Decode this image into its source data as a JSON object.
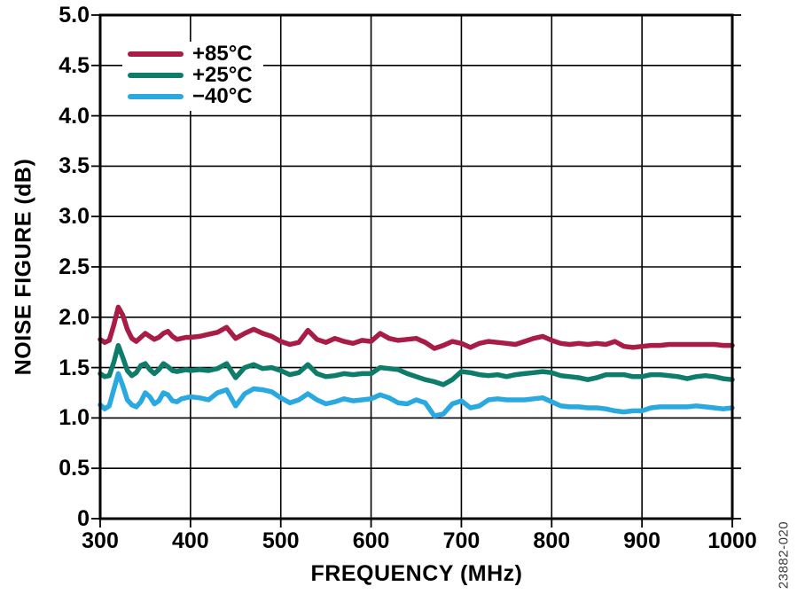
{
  "figure": {
    "watermark": "23882-020"
  },
  "chart_data": {
    "type": "line",
    "title": "",
    "xlabel": "FREQUENCY (MHz)",
    "ylabel": "NOISE FIGURE (dB)",
    "xlim": [
      300,
      1000
    ],
    "ylim": [
      0,
      5
    ],
    "grid": true,
    "legend_position": "top-left-inside",
    "x_ticks": [
      300,
      400,
      500,
      600,
      700,
      800,
      900,
      1000
    ],
    "x_tick_labels": [
      "300",
      "400",
      "500",
      "600",
      "700",
      "800",
      "900",
      "1000"
    ],
    "y_ticks": [
      0,
      0.5,
      1.0,
      1.5,
      2.0,
      2.5,
      3.0,
      3.5,
      4.0,
      4.5,
      5.0
    ],
    "y_tick_labels": [
      "0",
      "0.5",
      "1.0",
      "1.5",
      "2.0",
      "2.5",
      "3.0",
      "3.5",
      "4.0",
      "4.5",
      "5.0"
    ],
    "x": [
      300,
      305,
      310,
      315,
      320,
      325,
      330,
      335,
      340,
      345,
      350,
      355,
      360,
      365,
      370,
      375,
      380,
      385,
      390,
      395,
      400,
      410,
      420,
      430,
      440,
      450,
      460,
      470,
      480,
      490,
      500,
      510,
      520,
      530,
      540,
      550,
      560,
      570,
      580,
      590,
      600,
      610,
      620,
      630,
      640,
      650,
      660,
      670,
      680,
      690,
      700,
      710,
      720,
      730,
      740,
      750,
      760,
      770,
      780,
      790,
      800,
      810,
      820,
      830,
      840,
      850,
      860,
      870,
      880,
      890,
      900,
      910,
      920,
      930,
      940,
      950,
      960,
      970,
      980,
      990,
      1000
    ],
    "series": [
      {
        "name": "+85°C",
        "color": "#A81C45",
        "values": [
          1.78,
          1.75,
          1.77,
          1.92,
          2.1,
          2.02,
          1.88,
          1.79,
          1.76,
          1.8,
          1.84,
          1.81,
          1.78,
          1.8,
          1.84,
          1.86,
          1.81,
          1.78,
          1.79,
          1.8,
          1.8,
          1.81,
          1.83,
          1.85,
          1.9,
          1.79,
          1.84,
          1.88,
          1.84,
          1.81,
          1.76,
          1.73,
          1.75,
          1.87,
          1.78,
          1.75,
          1.79,
          1.76,
          1.74,
          1.77,
          1.76,
          1.84,
          1.79,
          1.77,
          1.78,
          1.79,
          1.75,
          1.69,
          1.72,
          1.76,
          1.74,
          1.7,
          1.74,
          1.76,
          1.75,
          1.74,
          1.73,
          1.76,
          1.79,
          1.81,
          1.77,
          1.74,
          1.73,
          1.74,
          1.73,
          1.74,
          1.73,
          1.76,
          1.71,
          1.7,
          1.71,
          1.72,
          1.72,
          1.73,
          1.73,
          1.73,
          1.73,
          1.73,
          1.73,
          1.72,
          1.72
        ]
      },
      {
        "name": "+25°C",
        "color": "#0E7C6B",
        "values": [
          1.44,
          1.41,
          1.42,
          1.55,
          1.72,
          1.6,
          1.47,
          1.42,
          1.45,
          1.52,
          1.54,
          1.48,
          1.44,
          1.48,
          1.54,
          1.51,
          1.47,
          1.46,
          1.47,
          1.48,
          1.47,
          1.48,
          1.47,
          1.49,
          1.54,
          1.4,
          1.5,
          1.53,
          1.49,
          1.5,
          1.47,
          1.43,
          1.45,
          1.53,
          1.44,
          1.41,
          1.42,
          1.44,
          1.43,
          1.44,
          1.44,
          1.5,
          1.49,
          1.48,
          1.44,
          1.41,
          1.38,
          1.36,
          1.33,
          1.38,
          1.46,
          1.45,
          1.43,
          1.42,
          1.43,
          1.41,
          1.43,
          1.44,
          1.45,
          1.46,
          1.45,
          1.42,
          1.41,
          1.4,
          1.38,
          1.4,
          1.43,
          1.43,
          1.43,
          1.41,
          1.41,
          1.43,
          1.43,
          1.42,
          1.41,
          1.39,
          1.41,
          1.42,
          1.41,
          1.39,
          1.38
        ]
      },
      {
        "name": "−40°C",
        "color": "#2AA9E0",
        "values": [
          1.13,
          1.09,
          1.12,
          1.28,
          1.44,
          1.32,
          1.18,
          1.13,
          1.11,
          1.16,
          1.25,
          1.21,
          1.14,
          1.17,
          1.25,
          1.23,
          1.17,
          1.16,
          1.19,
          1.2,
          1.21,
          1.2,
          1.18,
          1.25,
          1.28,
          1.12,
          1.24,
          1.29,
          1.28,
          1.26,
          1.2,
          1.15,
          1.18,
          1.24,
          1.18,
          1.14,
          1.16,
          1.19,
          1.17,
          1.18,
          1.19,
          1.23,
          1.2,
          1.15,
          1.14,
          1.18,
          1.15,
          1.02,
          1.04,
          1.14,
          1.17,
          1.1,
          1.12,
          1.18,
          1.19,
          1.18,
          1.18,
          1.18,
          1.19,
          1.2,
          1.16,
          1.12,
          1.11,
          1.11,
          1.1,
          1.1,
          1.09,
          1.07,
          1.06,
          1.07,
          1.07,
          1.1,
          1.11,
          1.11,
          1.11,
          1.11,
          1.12,
          1.11,
          1.1,
          1.09,
          1.1
        ]
      }
    ],
    "colors": {
      "grid": "#000000",
      "border": "#000000",
      "background": "#FFFFFF"
    }
  }
}
